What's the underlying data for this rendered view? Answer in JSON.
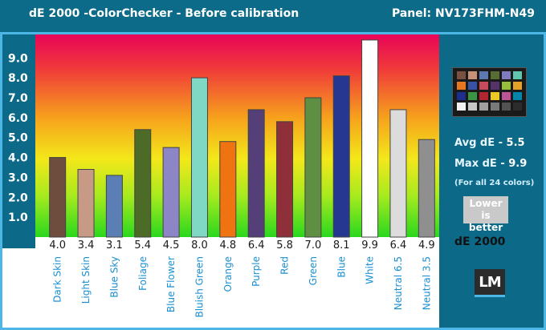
{
  "header": {
    "title": "dE 2000 -ColorChecker - Before calibration",
    "panel": "Panel: NV173FHM-N49"
  },
  "stats": {
    "avg_label": "Avg dE - ",
    "avg_value": "5.5",
    "max_label": "Max dE - ",
    "max_value": "9.9",
    "note": "(For all 24 colors)",
    "lower_line1": "Lower is",
    "lower_line2": "better",
    "metric_label": "dE 2000",
    "logo": "LM"
  },
  "swatch_colors": [
    "#7a5140",
    "#c69176",
    "#5c7ab0",
    "#586d33",
    "#7e7bbf",
    "#5ec7ad",
    "#e67822",
    "#3a52a6",
    "#c94a5a",
    "#553268",
    "#97bd3a",
    "#e4a12a",
    "#1d2e8d",
    "#3b9344",
    "#b3262f",
    "#efc923",
    "#bd5493",
    "#0086a8",
    "#f2f2f2",
    "#c7c7c7",
    "#a0a0a0",
    "#797979",
    "#525252",
    "#2c2c2c"
  ],
  "chart_data": {
    "type": "bar",
    "ylim": [
      0,
      10
    ],
    "yticks": [
      "1.0",
      "2.0",
      "3.0",
      "4.0",
      "5.0",
      "6.0",
      "7.0",
      "8.0",
      "9.0"
    ],
    "categories": [
      "Dark Skin",
      "Light Skin",
      "Blue Sky",
      "Foliage",
      "Blue Flower",
      "Bluish Green",
      "Orange",
      "Purple",
      "Red",
      "Green",
      "Blue",
      "White",
      "Neutral 6.5",
      "Neutral 3.5"
    ],
    "values": [
      4.0,
      3.4,
      3.1,
      5.4,
      4.5,
      8.0,
      4.8,
      6.4,
      5.8,
      7.0,
      8.1,
      9.9,
      6.4,
      4.9
    ],
    "value_labels": [
      "4.0",
      "3.4",
      "3.1",
      "5.4",
      "4.5",
      "8.0",
      "4.8",
      "6.4",
      "5.8",
      "7.0",
      "8.1",
      "9.9",
      "6.4",
      "4.9"
    ],
    "colors": [
      "#6e4d3f",
      "#c79a86",
      "#5b7fb4",
      "#4c6b26",
      "#8c86c6",
      "#7fd8c4",
      "#ef7310",
      "#543f78",
      "#8e2f39",
      "#5f8f42",
      "#263791",
      "#ffffff",
      "#dcdcdc",
      "#8f8f8f"
    ],
    "grid": false
  }
}
